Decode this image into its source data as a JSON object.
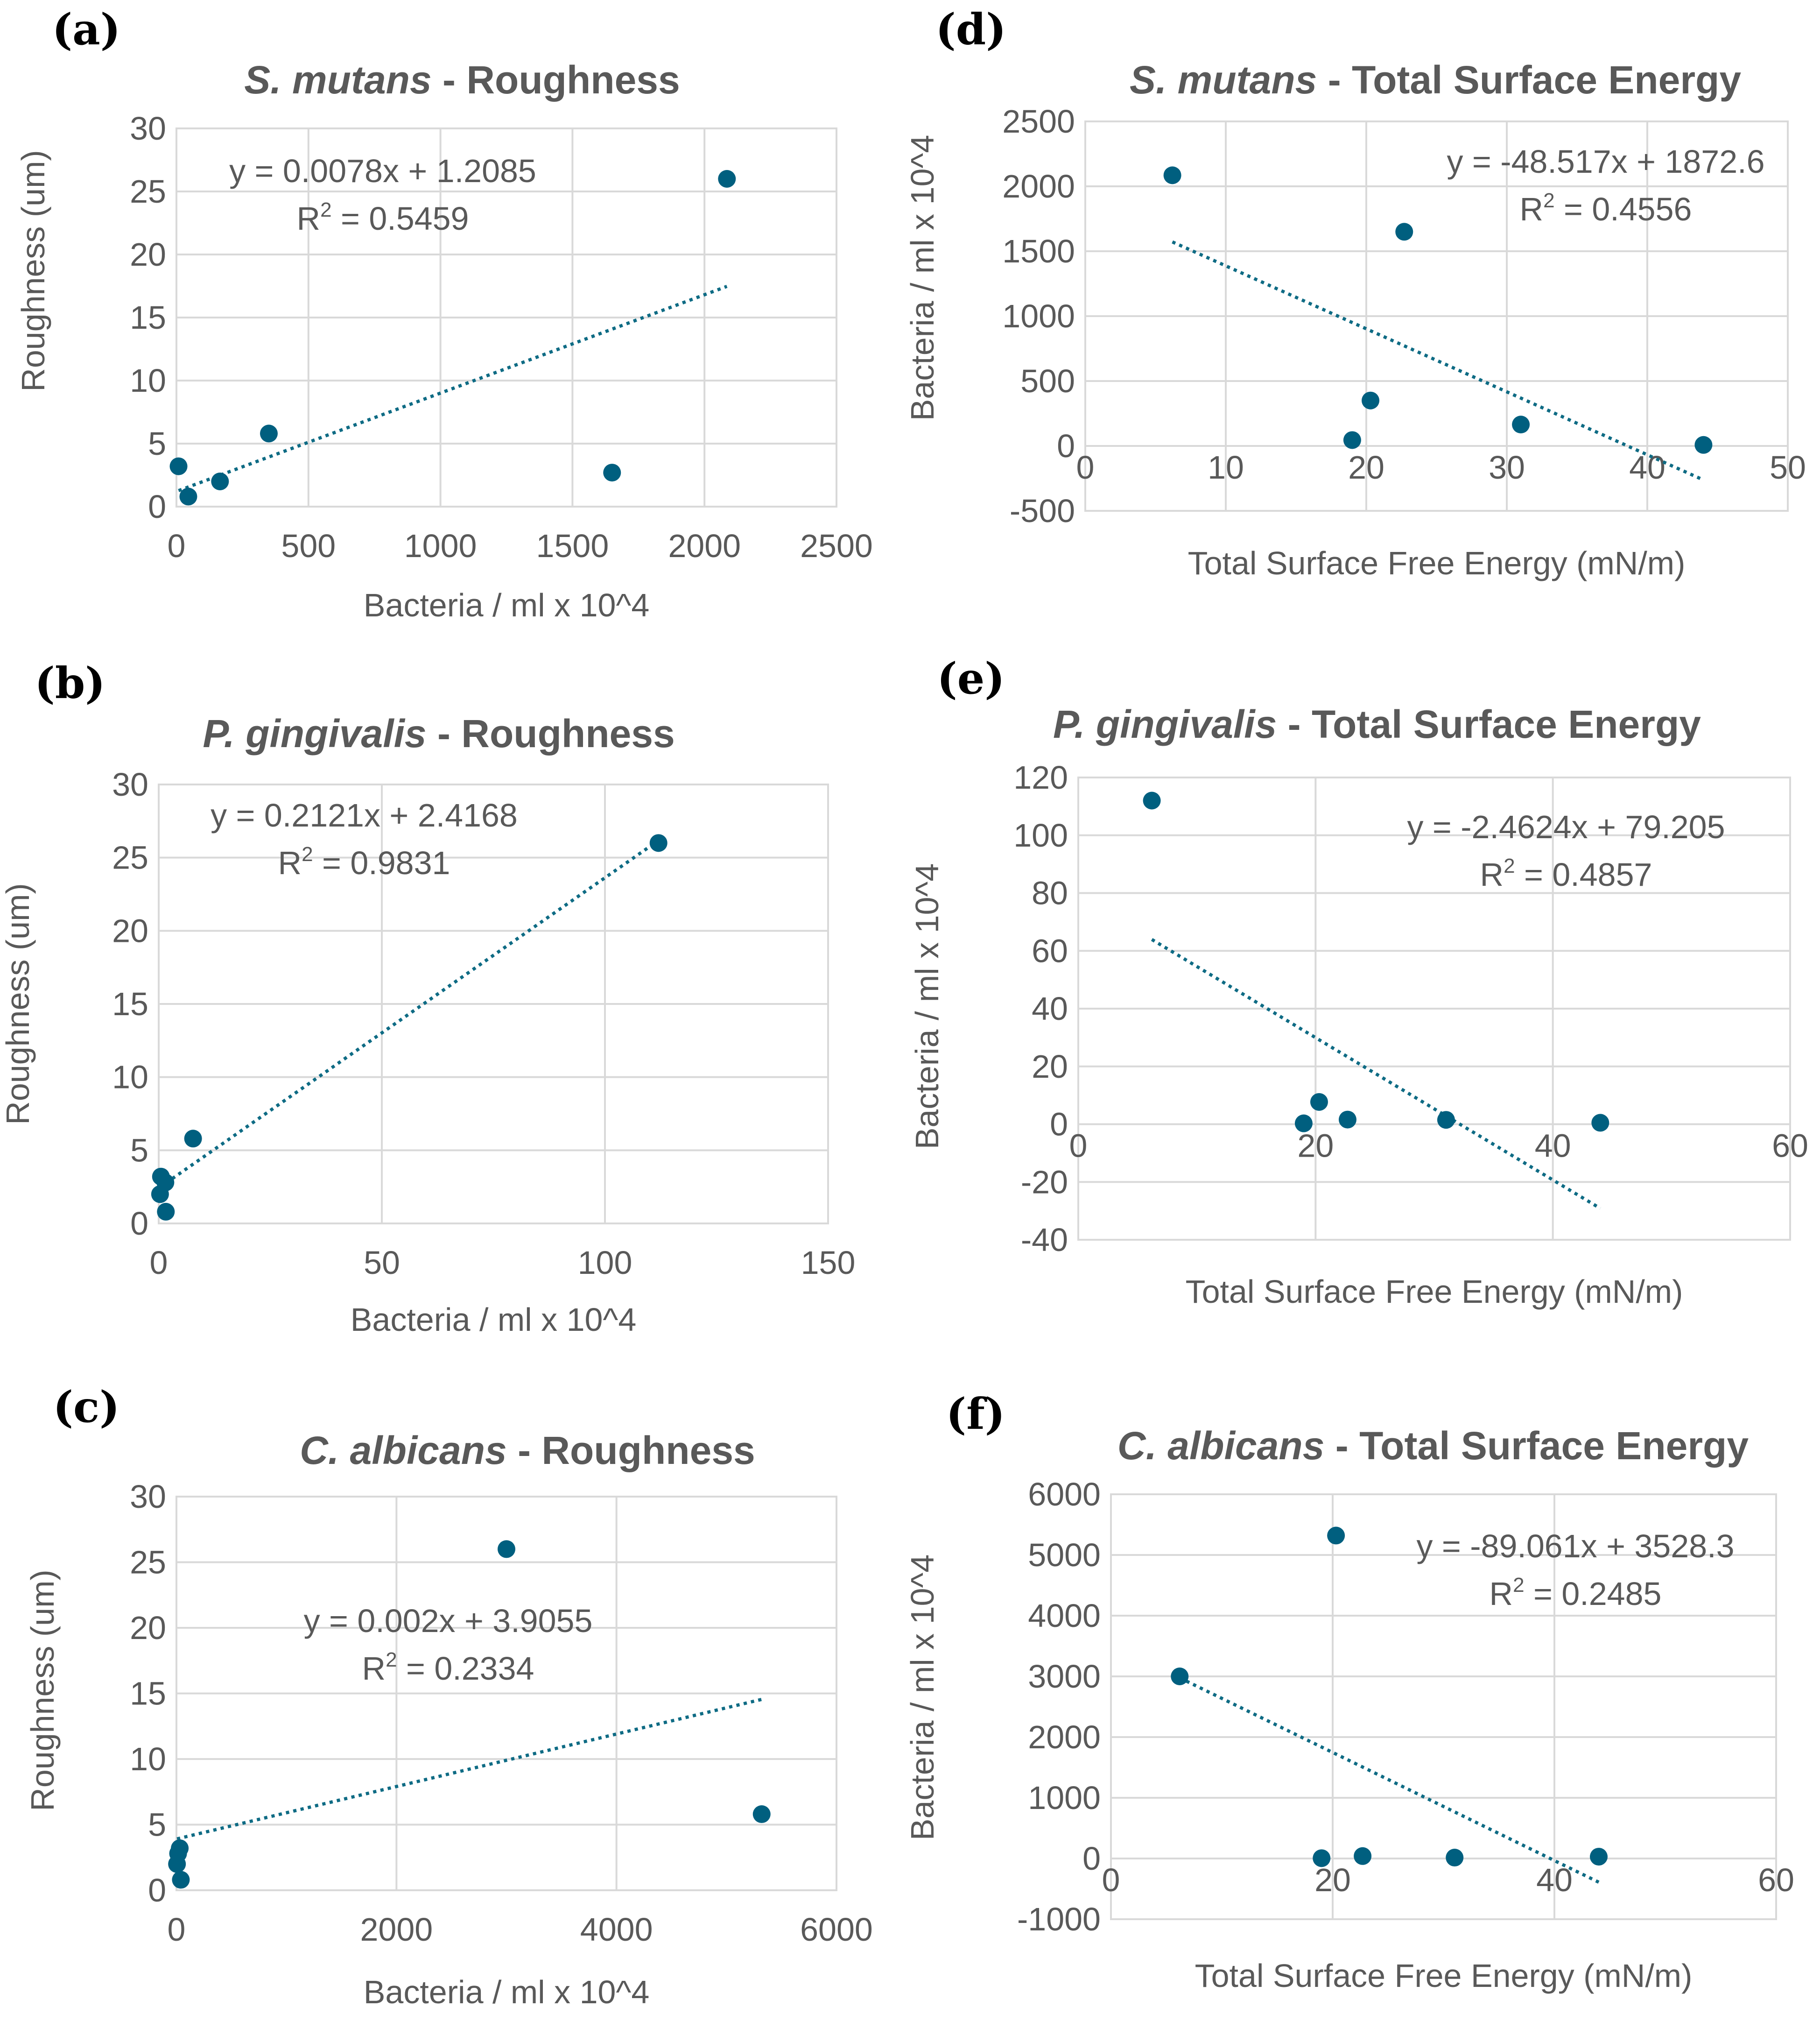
{
  "colors": {
    "marker": "#005f7f",
    "trendline": "#0e6b84",
    "grid": "#d9d9d9",
    "text": "#595959"
  },
  "chart_data": [
    {
      "id": "a",
      "panel_label": "(a)",
      "type": "scatter",
      "title_italic": "S. mutans",
      "title_rest": " - Roughness",
      "xlabel": "Bacteria / ml x 10^4",
      "ylabel": "Roughness (um)",
      "xlim": [
        0,
        2500
      ],
      "ylim": [
        0,
        30
      ],
      "xticks": [
        0,
        500,
        1000,
        1500,
        2000,
        2500
      ],
      "yticks": [
        0,
        5,
        10,
        15,
        20,
        25,
        30
      ],
      "points": [
        [
          8,
          3.2
        ],
        [
          45,
          0.8
        ],
        [
          165,
          2.0
        ],
        [
          350,
          5.8
        ],
        [
          1650,
          2.7
        ],
        [
          2085,
          26.0
        ]
      ],
      "trendline": {
        "slope": 0.0078,
        "intercept": 1.2085,
        "x_range": [
          8,
          2085
        ]
      },
      "equation": "y = 0.0078x + 1.2085",
      "r2_value": "0.5459",
      "grid": "both"
    },
    {
      "id": "b",
      "panel_label": "(b)",
      "type": "scatter",
      "title_italic": "P. gingivalis",
      "title_rest": " - Roughness",
      "xlabel": "Bacteria / ml x 10^4",
      "ylabel": "Roughness (um)",
      "xlim": [
        0,
        150
      ],
      "ylim": [
        0,
        30
      ],
      "xticks": [
        0,
        50,
        100,
        150
      ],
      "yticks": [
        0,
        5,
        10,
        15,
        20,
        25,
        30
      ],
      "points": [
        [
          0.3,
          2.0
        ],
        [
          0.5,
          3.2
        ],
        [
          1.5,
          2.8
        ],
        [
          1.6,
          0.8
        ],
        [
          7.7,
          5.8
        ],
        [
          112,
          26.0
        ]
      ],
      "trendline": {
        "slope": 0.2121,
        "intercept": 2.4168,
        "x_range": [
          0.3,
          112
        ]
      },
      "equation": "y = 0.2121x + 2.4168",
      "r2_value": "0.9831",
      "grid": "both"
    },
    {
      "id": "c",
      "panel_label": "(c)",
      "type": "scatter",
      "title_italic": "C. albicans",
      "title_rest": " - Roughness",
      "xlabel": "Bacteria / ml x 10^4",
      "ylabel": "Roughness (um)",
      "xlim": [
        0,
        6000
      ],
      "ylim": [
        0,
        30
      ],
      "xticks": [
        0,
        2000,
        4000,
        6000
      ],
      "yticks": [
        0,
        5,
        10,
        15,
        20,
        25,
        30
      ],
      "points": [
        [
          5,
          2.0
        ],
        [
          15,
          2.8
        ],
        [
          30,
          3.2
        ],
        [
          40,
          0.8
        ],
        [
          3000,
          26.0
        ],
        [
          5320,
          5.8
        ]
      ],
      "trendline": {
        "slope": 0.002,
        "intercept": 3.9055,
        "x_range": [
          5,
          5320
        ]
      },
      "equation": "y = 0.002x + 3.9055",
      "r2_value": "0.2334",
      "grid": "both"
    },
    {
      "id": "d",
      "panel_label": "(d)",
      "type": "scatter",
      "title_italic": "S. mutans",
      "title_rest": " - Total Surface Energy",
      "xlabel": "Total Surface Free Energy (mN/m)",
      "ylabel": "Bacteria / ml x 10^4",
      "xlim": [
        0,
        50
      ],
      "ylim": [
        -500,
        2500
      ],
      "xticks": [
        0,
        10,
        20,
        30,
        40,
        50
      ],
      "yticks": [
        -500,
        0,
        500,
        1000,
        1500,
        2000,
        2500
      ],
      "points": [
        [
          6.2,
          2085
        ],
        [
          19.0,
          45
        ],
        [
          20.3,
          350
        ],
        [
          22.7,
          1650
        ],
        [
          31.0,
          165
        ],
        [
          44.0,
          8
        ]
      ],
      "trendline": {
        "slope": -48.517,
        "intercept": 1872.6,
        "x_range": [
          6.2,
          44.0
        ]
      },
      "equation": "y = -48.517x + 1872.6",
      "r2_value": "0.4556",
      "grid": "both"
    },
    {
      "id": "e",
      "panel_label": "(e)",
      "type": "scatter",
      "title_italic": "P. gingivalis",
      "title_rest": " - Total Surface Energy",
      "xlabel": "Total Surface Free Energy (mN/m)",
      "ylabel": "Bacteria / ml x 10^4",
      "xlim": [
        0,
        60
      ],
      "ylim": [
        -40,
        120
      ],
      "xticks": [
        0,
        20,
        40,
        60
      ],
      "yticks": [
        -40,
        -20,
        0,
        20,
        40,
        60,
        80,
        100,
        120
      ],
      "points": [
        [
          6.2,
          112
        ],
        [
          19.0,
          0.3
        ],
        [
          20.3,
          7.7
        ],
        [
          22.7,
          1.6
        ],
        [
          31.0,
          1.5
        ],
        [
          44.0,
          0.5
        ]
      ],
      "trendline": {
        "slope": -2.4624,
        "intercept": 79.205,
        "x_range": [
          6.2,
          44.0
        ]
      },
      "equation": "y = -2.4624x + 79.205",
      "r2_value": "0.4857",
      "grid": "both"
    },
    {
      "id": "f",
      "panel_label": "(f)",
      "type": "scatter",
      "title_italic": "C. albicans",
      "title_rest": " - Total Surface Energy",
      "xlabel": "Total Surface Free Energy (mN/m)",
      "ylabel": "Bacteria / ml x 10^4",
      "xlim": [
        0,
        60
      ],
      "ylim": [
        -1000,
        6000
      ],
      "xticks": [
        0,
        20,
        40,
        60
      ],
      "yticks": [
        -1000,
        0,
        1000,
        2000,
        3000,
        4000,
        5000,
        6000
      ],
      "points": [
        [
          6.2,
          3000
        ],
        [
          19.0,
          5
        ],
        [
          20.3,
          5320
        ],
        [
          22.7,
          40
        ],
        [
          31.0,
          15
        ],
        [
          44.0,
          30
        ]
      ],
      "trendline": {
        "slope": -89.061,
        "intercept": 3528.3,
        "x_range": [
          6.2,
          44.0
        ]
      },
      "equation": "y = -89.061x + 3528.3",
      "r2_value": "0.2485",
      "grid": "both"
    }
  ]
}
